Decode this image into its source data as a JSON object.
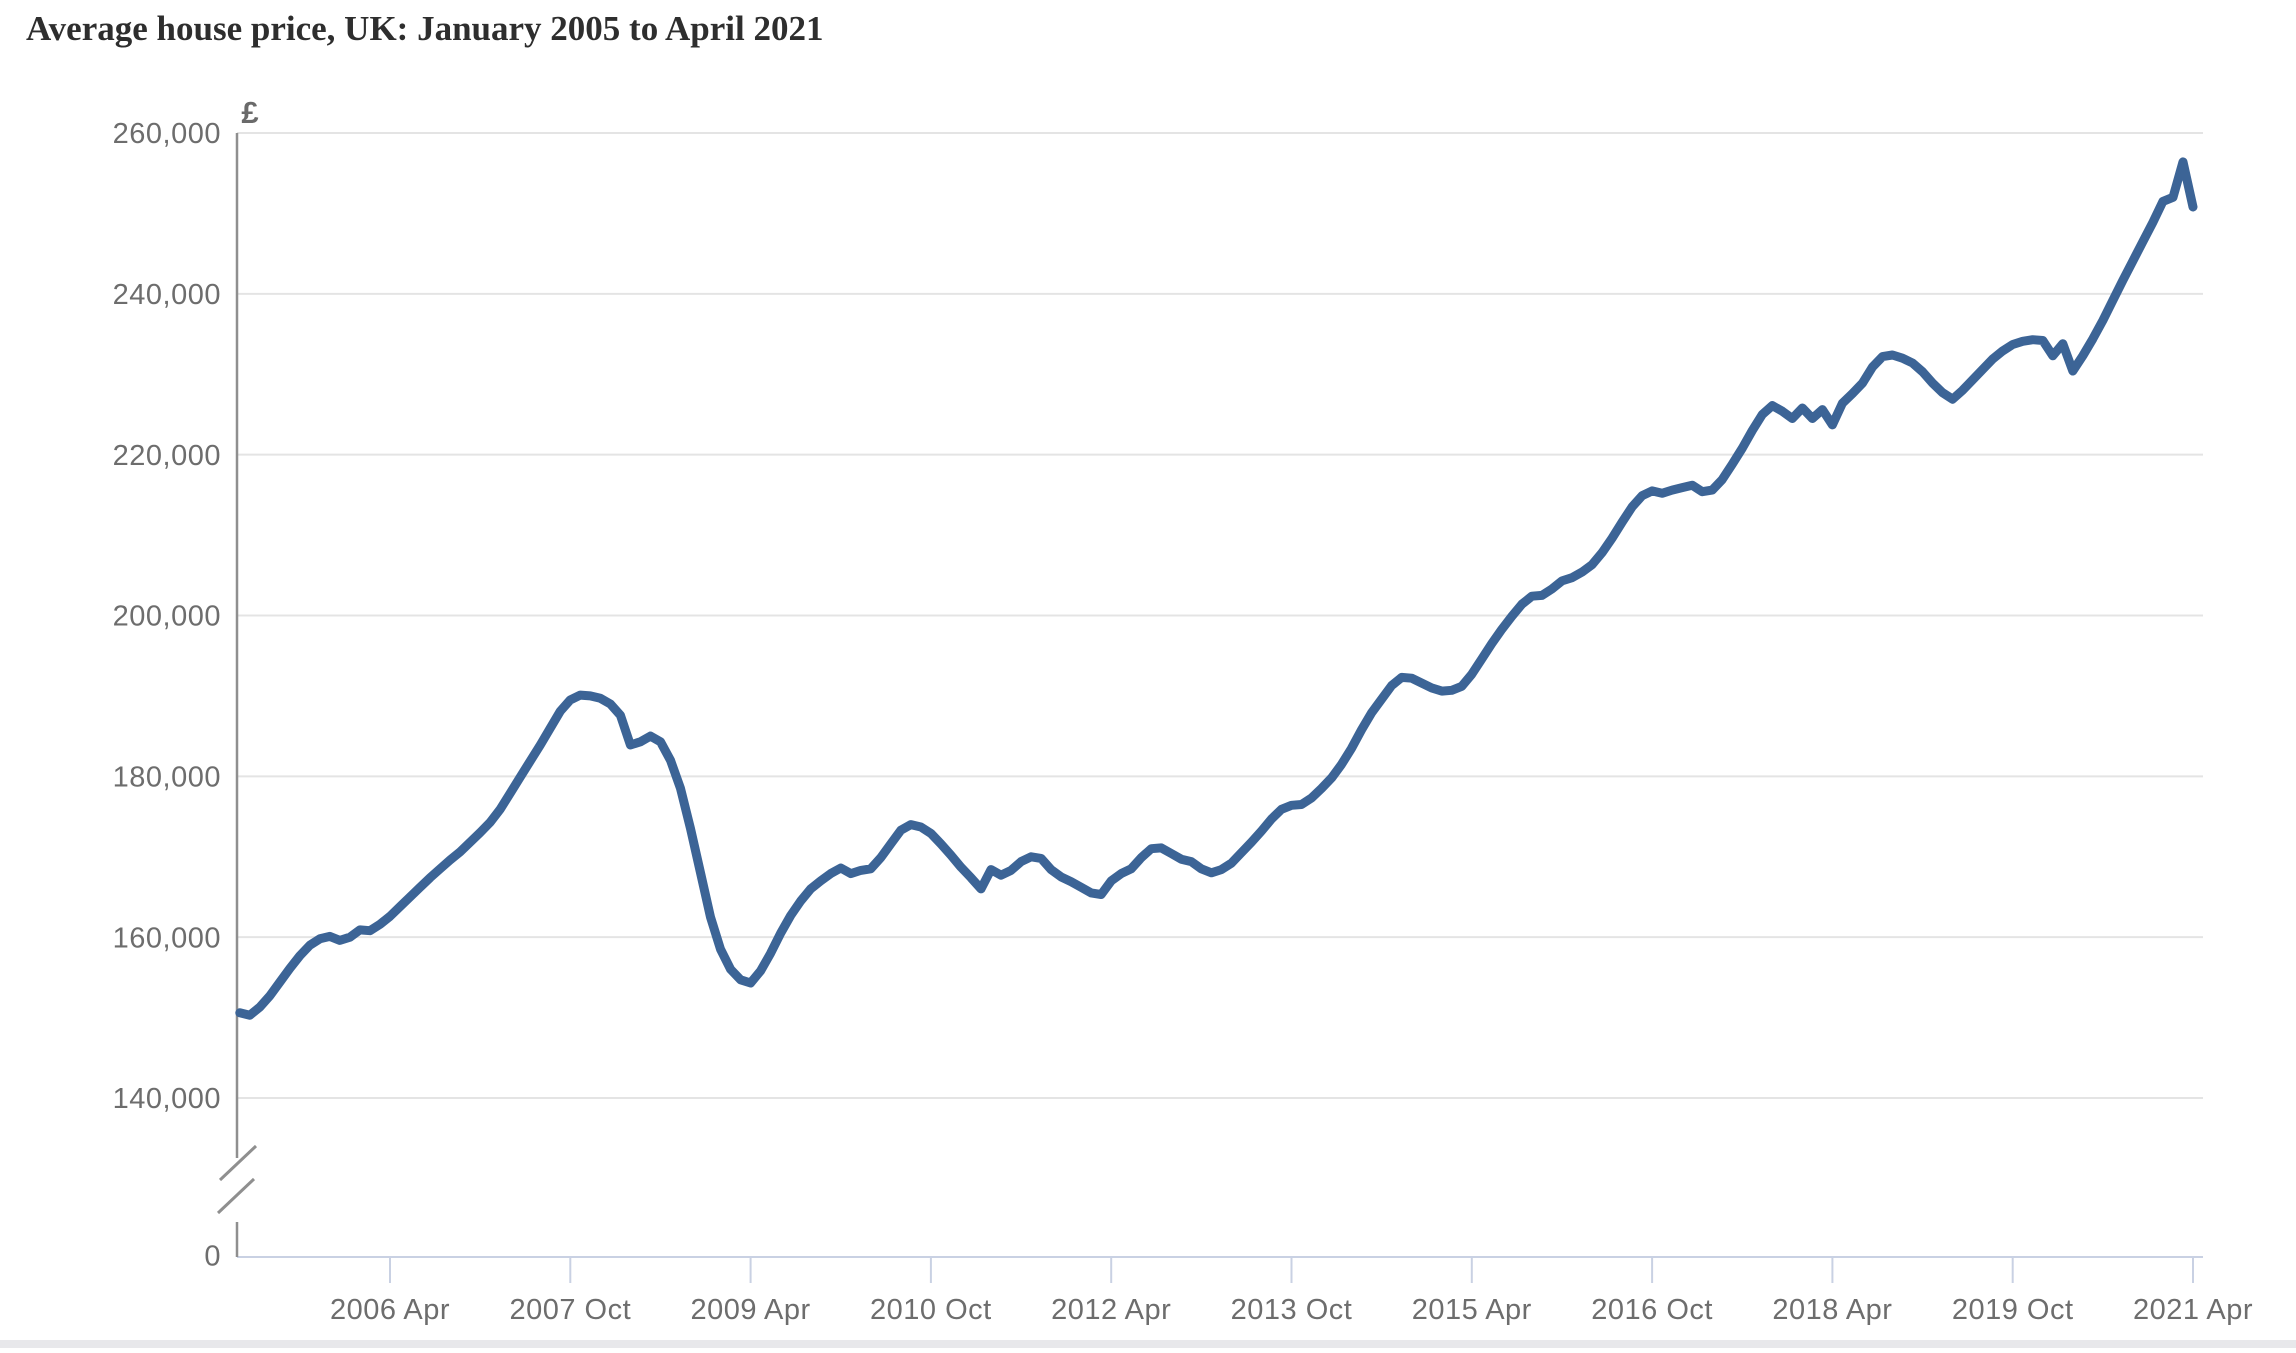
{
  "page": {
    "background": "#ffffff",
    "bottom_strip_color": "#e8e8eb"
  },
  "chart_data": {
    "type": "line",
    "title": "Average house price, UK: January 2005 to April 2021",
    "unit_symbol": "£",
    "currency": "GBP",
    "xlabel": "",
    "ylabel": "£",
    "frequency": "monthly",
    "x_start": "2005-01",
    "x_end": "2021-04",
    "grid": "horizontal",
    "legend_position": "none",
    "axis_break_above_zero": true,
    "ylim_data_region": [
      140000,
      260000
    ],
    "x_tick_labels": [
      "2006 Apr",
      "2007 Oct",
      "2009 Apr",
      "2010 Oct",
      "2012 Apr",
      "2013 Oct",
      "2015 Apr",
      "2016 Oct",
      "2018 Apr",
      "2019 Oct",
      "2021 Apr"
    ],
    "y_axis": {
      "tick_values": [
        260000,
        240000,
        220000,
        200000,
        180000,
        160000,
        140000
      ],
      "tick_labels": [
        "260,000",
        "240,000",
        "220,000",
        "200,000",
        "180,000",
        "160,000",
        "140,000"
      ],
      "zero_label": "0"
    },
    "colors": {
      "line": "#3c6496",
      "gridline": "#e4e4e4",
      "x_axis": "#c9d1e3",
      "y_axis": "#8f8f8f",
      "tick_label": "#6d6d6d",
      "title": "#2e2e2e",
      "unit_label": "#6a6a6a"
    },
    "series": [
      {
        "name": "UK average house price (£)",
        "values": [
          150600,
          150300,
          151300,
          152700,
          154400,
          156100,
          157700,
          159000,
          159800,
          160100,
          159600,
          160000,
          160900,
          160800,
          161600,
          162600,
          163800,
          165000,
          166200,
          167400,
          168500,
          169600,
          170600,
          171800,
          173000,
          174300,
          175900,
          177900,
          179900,
          181900,
          183900,
          186000,
          188100,
          189500,
          190100,
          190000,
          189700,
          189000,
          187600,
          183900,
          184300,
          185000,
          184300,
          182000,
          178500,
          173500,
          168000,
          162500,
          158500,
          156000,
          154700,
          154300,
          155800,
          158000,
          160500,
          162700,
          164500,
          166000,
          167000,
          167900,
          168600,
          167900,
          168300,
          168500,
          169900,
          171600,
          173300,
          174000,
          173700,
          172900,
          171600,
          170200,
          168700,
          167400,
          166000,
          168400,
          167700,
          168300,
          169400,
          170000,
          169800,
          168400,
          167500,
          166900,
          166200,
          165500,
          165300,
          167000,
          167900,
          168500,
          169900,
          171000,
          171100,
          170400,
          169700,
          169400,
          168500,
          168000,
          168400,
          169200,
          170500,
          171800,
          173200,
          174700,
          175900,
          176400,
          176500,
          177300,
          178500,
          179800,
          181500,
          183500,
          185800,
          187900,
          189600,
          191300,
          192300,
          192200,
          191600,
          191000,
          190600,
          190700,
          191200,
          192700,
          194600,
          196500,
          198300,
          199900,
          201400,
          202400,
          202500,
          203300,
          204300,
          204700,
          205400,
          206300,
          207800,
          209600,
          211600,
          213500,
          214900,
          215500,
          215200,
          215600,
          215900,
          216200,
          215400,
          215600,
          216900,
          218800,
          220800,
          223000,
          225000,
          226100,
          225400,
          224500,
          225800,
          224500,
          225600,
          223700,
          226400,
          227600,
          228900,
          230900,
          232200,
          232400,
          232000,
          231400,
          230300,
          228900,
          227700,
          226900,
          228000,
          229300,
          230600,
          231900,
          232900,
          233700,
          234100,
          234300,
          234200,
          232300,
          233800,
          230400,
          232300,
          234400,
          236700,
          239200,
          241700,
          244100,
          246500,
          248900,
          251500,
          252000,
          256400,
          250800
        ]
      }
    ]
  }
}
